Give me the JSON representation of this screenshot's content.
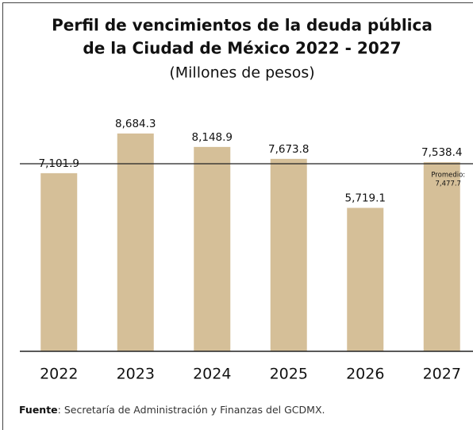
{
  "chart_data": {
    "type": "bar",
    "title_lines": [
      "Perfil de vencimientos de la deuda pública",
      "de la Ciudad de México 2022 - 2027"
    ],
    "subtitle": "(Millones de pesos)",
    "categories": [
      "2022",
      "2023",
      "2024",
      "2025",
      "2026",
      "2027"
    ],
    "values": [
      7101.9,
      8684.3,
      8148.9,
      7673.8,
      5719.1,
      7538.4
    ],
    "value_labels": [
      "7,101.9",
      "8,684.3",
      "8,148.9",
      "7,673.8",
      "5,719.1",
      "7,538.4"
    ],
    "color": "#d5bf98",
    "ylim": [
      0,
      9000
    ],
    "average": {
      "label": "Promedio:",
      "value": 7477.7,
      "value_label": "7,477.7"
    },
    "source": {
      "label": "Fuente",
      "text": ": Secretaría de Administración y Finanzas del GCDMX."
    }
  }
}
